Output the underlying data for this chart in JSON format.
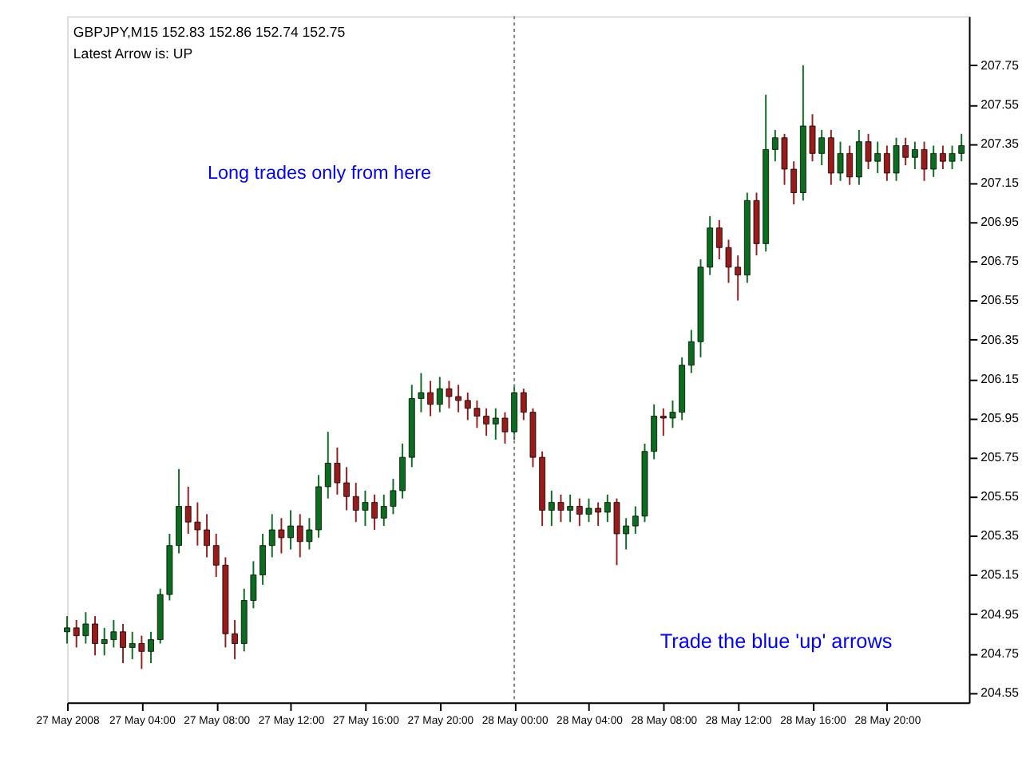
{
  "chart_data": {
    "type": "candlestick",
    "title": "GBPJPY,M15  152.83 152.86 152.74 152.75",
    "annotations": [
      "Latest Arrow is:  UP",
      "Long trades only from here",
      "Trade the blue 'up' arrows"
    ],
    "x": [
      "2008-05-27T00:00",
      "2008-05-27T00:30",
      "2008-05-27T01:00",
      "2008-05-27T01:30",
      "2008-05-27T02:00",
      "2008-05-27T02:30",
      "2008-05-27T03:00",
      "2008-05-27T03:30",
      "2008-05-27T04:00",
      "2008-05-27T04:30",
      "2008-05-27T05:00",
      "2008-05-27T05:30",
      "2008-05-27T06:00",
      "2008-05-27T06:30",
      "2008-05-27T07:00",
      "2008-05-27T07:30",
      "2008-05-27T08:00",
      "2008-05-27T08:30",
      "2008-05-27T09:00",
      "2008-05-27T09:30",
      "2008-05-27T10:00",
      "2008-05-27T10:30",
      "2008-05-27T11:00",
      "2008-05-27T11:30",
      "2008-05-27T12:00",
      "2008-05-27T12:30",
      "2008-05-27T13:00",
      "2008-05-27T13:30",
      "2008-05-27T14:00",
      "2008-05-27T14:30",
      "2008-05-27T15:00",
      "2008-05-27T15:30",
      "2008-05-27T16:00",
      "2008-05-27T16:30",
      "2008-05-27T17:00",
      "2008-05-27T17:30",
      "2008-05-27T18:00",
      "2008-05-27T18:30",
      "2008-05-27T19:00",
      "2008-05-27T19:30",
      "2008-05-27T20:00",
      "2008-05-27T20:30",
      "2008-05-27T21:00",
      "2008-05-27T21:30",
      "2008-05-27T22:00",
      "2008-05-27T22:30",
      "2008-05-27T23:00",
      "2008-05-27T23:30",
      "2008-05-28T00:00",
      "2008-05-28T00:30",
      "2008-05-28T01:00",
      "2008-05-28T01:30",
      "2008-05-28T02:00",
      "2008-05-28T02:30",
      "2008-05-28T03:00",
      "2008-05-28T03:30",
      "2008-05-28T04:00",
      "2008-05-28T04:30",
      "2008-05-28T05:00",
      "2008-05-28T05:30",
      "2008-05-28T06:00",
      "2008-05-28T06:30",
      "2008-05-28T07:00",
      "2008-05-28T07:30",
      "2008-05-28T08:00",
      "2008-05-28T08:30",
      "2008-05-28T09:00",
      "2008-05-28T09:30",
      "2008-05-28T10:00",
      "2008-05-28T10:30",
      "2008-05-28T11:00",
      "2008-05-28T11:30",
      "2008-05-28T12:00",
      "2008-05-28T12:30",
      "2008-05-28T13:00",
      "2008-05-28T13:30",
      "2008-05-28T14:00",
      "2008-05-28T14:30",
      "2008-05-28T15:00",
      "2008-05-28T15:30",
      "2008-05-28T16:00",
      "2008-05-28T16:30",
      "2008-05-28T17:00",
      "2008-05-28T17:30",
      "2008-05-28T18:00",
      "2008-05-28T18:30",
      "2008-05-28T19:00",
      "2008-05-28T19:30",
      "2008-05-28T20:00",
      "2008-05-28T20:30",
      "2008-05-28T21:00",
      "2008-05-28T21:30",
      "2008-05-28T22:00",
      "2008-05-28T22:30",
      "2008-05-28T23:00",
      "2008-05-28T23:30",
      "2008-05-29T00:00"
    ],
    "ohlc": [
      [
        204.86,
        204.94,
        204.8,
        204.88
      ],
      [
        204.88,
        204.92,
        204.78,
        204.84
      ],
      [
        204.84,
        204.96,
        204.8,
        204.9
      ],
      [
        204.9,
        204.94,
        204.74,
        204.8
      ],
      [
        204.8,
        204.88,
        204.74,
        204.82
      ],
      [
        204.82,
        204.92,
        204.78,
        204.86
      ],
      [
        204.86,
        204.9,
        204.7,
        204.78
      ],
      [
        204.78,
        204.86,
        204.72,
        204.8
      ],
      [
        204.8,
        204.84,
        204.67,
        204.76
      ],
      [
        204.76,
        204.86,
        204.7,
        204.82
      ],
      [
        204.82,
        205.08,
        204.8,
        205.05
      ],
      [
        205.05,
        205.36,
        205.02,
        205.3
      ],
      [
        205.3,
        205.69,
        205.26,
        205.5
      ],
      [
        205.5,
        205.6,
        205.36,
        205.42
      ],
      [
        205.42,
        205.52,
        205.3,
        205.38
      ],
      [
        205.38,
        205.46,
        205.24,
        205.3
      ],
      [
        205.3,
        205.36,
        205.14,
        205.2
      ],
      [
        205.2,
        205.24,
        204.78,
        204.85
      ],
      [
        204.85,
        204.92,
        204.72,
        204.8
      ],
      [
        204.8,
        205.08,
        204.76,
        205.02
      ],
      [
        205.02,
        205.22,
        204.98,
        205.15
      ],
      [
        205.15,
        205.36,
        205.1,
        205.3
      ],
      [
        205.3,
        205.46,
        205.24,
        205.38
      ],
      [
        205.38,
        205.44,
        205.26,
        205.34
      ],
      [
        205.34,
        205.48,
        205.28,
        205.4
      ],
      [
        205.4,
        205.46,
        205.24,
        205.32
      ],
      [
        205.32,
        205.44,
        205.28,
        205.38
      ],
      [
        205.38,
        205.66,
        205.34,
        205.6
      ],
      [
        205.6,
        205.88,
        205.54,
        205.72
      ],
      [
        205.72,
        205.8,
        205.56,
        205.62
      ],
      [
        205.62,
        205.7,
        205.48,
        205.55
      ],
      [
        205.55,
        205.62,
        205.42,
        205.48
      ],
      [
        205.48,
        205.58,
        205.4,
        205.52
      ],
      [
        205.52,
        205.56,
        205.38,
        205.44
      ],
      [
        205.44,
        205.56,
        205.4,
        205.5
      ],
      [
        205.5,
        205.64,
        205.46,
        205.58
      ],
      [
        205.58,
        205.82,
        205.54,
        205.75
      ],
      [
        205.75,
        206.12,
        205.7,
        206.05
      ],
      [
        206.05,
        206.18,
        205.98,
        206.08
      ],
      [
        206.08,
        206.14,
        205.96,
        206.02
      ],
      [
        206.02,
        206.16,
        205.98,
        206.1
      ],
      [
        206.1,
        206.14,
        206.0,
        206.06
      ],
      [
        206.06,
        206.12,
        205.98,
        206.04
      ],
      [
        206.04,
        206.08,
        205.94,
        206.0
      ],
      [
        206.0,
        206.04,
        205.9,
        205.96
      ],
      [
        205.96,
        206.0,
        205.86,
        205.92
      ],
      [
        205.92,
        206.0,
        205.84,
        205.95
      ],
      [
        205.95,
        205.98,
        205.82,
        205.88
      ],
      [
        205.88,
        206.12,
        205.84,
        206.08
      ],
      [
        206.08,
        206.1,
        205.94,
        205.98
      ],
      [
        205.98,
        206.0,
        205.7,
        205.75
      ],
      [
        205.75,
        205.78,
        205.4,
        205.48
      ],
      [
        205.48,
        205.58,
        205.4,
        205.52
      ],
      [
        205.52,
        205.56,
        205.42,
        205.48
      ],
      [
        205.48,
        205.56,
        205.42,
        205.5
      ],
      [
        205.5,
        205.54,
        205.4,
        205.46
      ],
      [
        205.46,
        205.54,
        205.42,
        205.49
      ],
      [
        205.49,
        205.52,
        205.4,
        205.47
      ],
      [
        205.47,
        205.56,
        205.42,
        205.52
      ],
      [
        205.52,
        205.54,
        205.2,
        205.36
      ],
      [
        205.36,
        205.44,
        205.28,
        205.4
      ],
      [
        205.4,
        205.5,
        205.36,
        205.45
      ],
      [
        205.45,
        205.82,
        205.42,
        205.78
      ],
      [
        205.78,
        206.02,
        205.74,
        205.96
      ],
      [
        205.96,
        206.0,
        205.86,
        205.95
      ],
      [
        205.95,
        206.04,
        205.9,
        205.98
      ],
      [
        205.98,
        206.26,
        205.94,
        206.22
      ],
      [
        206.22,
        206.4,
        206.18,
        206.34
      ],
      [
        206.34,
        206.76,
        206.26,
        206.72
      ],
      [
        206.72,
        206.98,
        206.68,
        206.92
      ],
      [
        206.92,
        206.96,
        206.76,
        206.82
      ],
      [
        206.82,
        206.86,
        206.64,
        206.72
      ],
      [
        206.72,
        206.78,
        206.55,
        206.68
      ],
      [
        206.68,
        207.1,
        206.64,
        207.06
      ],
      [
        207.06,
        207.1,
        206.78,
        206.84
      ],
      [
        206.84,
        207.6,
        206.8,
        207.32
      ],
      [
        207.32,
        207.42,
        207.26,
        207.38
      ],
      [
        207.38,
        207.4,
        207.14,
        207.22
      ],
      [
        207.22,
        207.26,
        207.04,
        207.1
      ],
      [
        207.1,
        207.75,
        207.06,
        207.44
      ],
      [
        207.44,
        207.5,
        207.26,
        207.3
      ],
      [
        207.3,
        207.42,
        207.24,
        207.38
      ],
      [
        207.38,
        207.42,
        207.14,
        207.2
      ],
      [
        207.2,
        207.36,
        207.16,
        207.3
      ],
      [
        207.3,
        207.34,
        207.14,
        207.18
      ],
      [
        207.18,
        207.42,
        207.14,
        207.36
      ],
      [
        207.36,
        207.4,
        207.22,
        207.26
      ],
      [
        207.26,
        207.36,
        207.2,
        207.3
      ],
      [
        207.3,
        207.34,
        207.16,
        207.2
      ],
      [
        207.2,
        207.38,
        207.16,
        207.34
      ],
      [
        207.34,
        207.38,
        207.24,
        207.28
      ],
      [
        207.28,
        207.36,
        207.22,
        207.32
      ],
      [
        207.32,
        207.36,
        207.16,
        207.22
      ],
      [
        207.22,
        207.34,
        207.18,
        207.3
      ],
      [
        207.3,
        207.34,
        207.22,
        207.26
      ],
      [
        207.26,
        207.34,
        207.22,
        207.3
      ],
      [
        207.3,
        207.4,
        207.26,
        207.34
      ]
    ],
    "colors": [
      "#0a6e1e",
      "#9b1b1b",
      "#0a6e1e",
      "#9b1b1b",
      "#0a6e1e",
      "#0a6e1e",
      "#9b1b1b",
      "#0a6e1e",
      "#9b1b1b",
      "#0a6e1e",
      "#0a6e1e",
      "#0a6e1e",
      "#0a6e1e",
      "#9b1b1b",
      "#9b1b1b",
      "#9b1b1b",
      "#9b1b1b",
      "#9b1b1b",
      "#9b1b1b",
      "#0a6e1e",
      "#0a6e1e",
      "#0a6e1e",
      "#0a6e1e",
      "#9b1b1b",
      "#0a6e1e",
      "#9b1b1b",
      "#0a6e1e",
      "#0a6e1e",
      "#0a6e1e",
      "#9b1b1b",
      "#9b1b1b",
      "#9b1b1b",
      "#0a6e1e",
      "#9b1b1b",
      "#0a6e1e",
      "#0a6e1e",
      "#0a6e1e",
      "#0a6e1e",
      "#0a6e1e",
      "#9b1b1b",
      "#0a6e1e",
      "#9b1b1b",
      "#9b1b1b",
      "#9b1b1b",
      "#9b1b1b",
      "#9b1b1b",
      "#0a6e1e",
      "#9b1b1b",
      "#0a6e1e",
      "#9b1b1b",
      "#9b1b1b",
      "#9b1b1b",
      "#0a6e1e",
      "#9b1b1b",
      "#0a6e1e",
      "#9b1b1b",
      "#0a6e1e",
      "#9b1b1b",
      "#0a6e1e",
      "#9b1b1b",
      "#0a6e1e",
      "#0a6e1e",
      "#0a6e1e",
      "#0a6e1e",
      "#9b1b1b",
      "#0a6e1e",
      "#0a6e1e",
      "#0a6e1e",
      "#0a6e1e",
      "#0a6e1e",
      "#9b1b1b",
      "#9b1b1b",
      "#9b1b1b",
      "#0a6e1e",
      "#9b1b1b",
      "#0a6e1e",
      "#0a6e1e",
      "#9b1b1b",
      "#9b1b1b",
      "#0a6e1e",
      "#9b1b1b",
      "#0a6e1e",
      "#9b1b1b",
      "#0a6e1e",
      "#9b1b1b",
      "#0a6e1e",
      "#9b1b1b",
      "#0a6e1e",
      "#9b1b1b",
      "#0a6e1e",
      "#9b1b1b",
      "#0a6e1e",
      "#9b1b1b",
      "#0a6e1e",
      "#9b1b1b",
      "#0a6e1e",
      "#0a6e1e"
    ],
    "xlim": [
      "2008-05-27T00:00",
      "2008-05-29T00:24"
    ],
    "xticks": [
      {
        "value": "2008-05-27T00:00",
        "label": "27 May 2008"
      },
      {
        "value": "2008-05-27T04:00",
        "label": "27 May 04:00"
      },
      {
        "value": "2008-05-27T08:00",
        "label": "27 May 08:00"
      },
      {
        "value": "2008-05-27T12:00",
        "label": "27 May 12:00"
      },
      {
        "value": "2008-05-27T16:00",
        "label": "27 May 16:00"
      },
      {
        "value": "2008-05-27T20:00",
        "label": "27 May 20:00"
      },
      {
        "value": "2008-05-28T00:00",
        "label": "28 May 00:00"
      },
      {
        "value": "2008-05-28T04:00",
        "label": "28 May 04:00"
      },
      {
        "value": "2008-05-28T08:00",
        "label": "28 May 08:00"
      },
      {
        "value": "2008-05-28T12:00",
        "label": "28 May 12:00"
      },
      {
        "value": "2008-05-28T16:00",
        "label": "28 May 16:00"
      },
      {
        "value": "2008-05-28T20:00",
        "label": "28 May 20:00"
      }
    ],
    "ylim": [
      204.5,
      208.0
    ],
    "yticks": [
      204.55,
      204.75,
      204.95,
      205.15,
      205.35,
      205.55,
      205.75,
      205.95,
      206.15,
      206.35,
      206.55,
      206.75,
      206.95,
      207.15,
      207.35,
      207.55,
      207.75
    ],
    "ref_lines": [
      {
        "axis": "x",
        "value": "2008-05-28T00:00",
        "color": "#808080",
        "line_style": "dotted"
      }
    ]
  }
}
